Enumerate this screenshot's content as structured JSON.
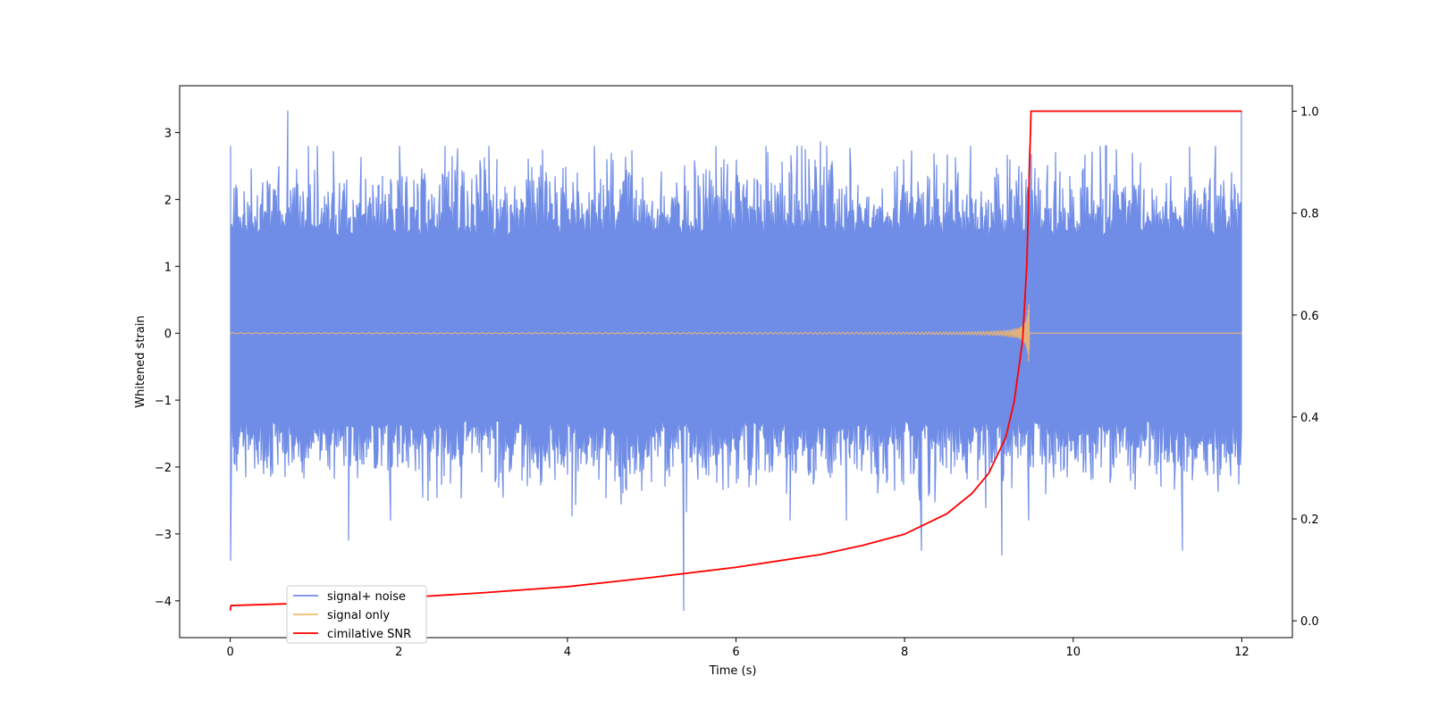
{
  "chart_data": {
    "type": "line",
    "xlabel": "Time (s)",
    "ylabel": "Whitened strain",
    "xlim": [
      -0.6,
      12.6
    ],
    "ylim": [
      -4.55,
      3.7
    ],
    "y2lim": [
      -0.033,
      1.05
    ],
    "x_ticks": [
      "0",
      "2",
      "4",
      "6",
      "8",
      "10",
      "12"
    ],
    "x_tick_values": [
      0,
      2,
      4,
      6,
      8,
      10,
      12
    ],
    "y_ticks": [
      "3",
      "2",
      "1",
      "0",
      "−1",
      "−2",
      "−3",
      "−4"
    ],
    "y_tick_values": [
      3,
      2,
      1,
      0,
      -1,
      -2,
      -3,
      -4
    ],
    "y2_ticks": [
      "1.0",
      "0.8",
      "0.6",
      "0.4",
      "0.2",
      "0.0"
    ],
    "y2_tick_values": [
      1.0,
      0.8,
      0.6,
      0.4,
      0.2,
      0.0
    ],
    "legend_position": "lower-left",
    "series": [
      {
        "name": "signal+ noise",
        "color": "#6f8ce6",
        "axis": "left",
        "description_values": {
          "x_range": [
            0,
            12
          ],
          "envelope_typical": [
            -1.8,
            2.0
          ],
          "peaks": [
            {
              "x": 0.0,
              "y": -3.4
            },
            {
              "x": 0.68,
              "y": 3.33
            },
            {
              "x": 1.4,
              "y": -3.1
            },
            {
              "x": 5.38,
              "y": -4.15
            },
            {
              "x": 7.0,
              "y": 2.87
            },
            {
              "x": 8.2,
              "y": -3.25
            },
            {
              "x": 9.15,
              "y": -3.32
            },
            {
              "x": 11.3,
              "y": -3.25
            },
            {
              "x": 12.0,
              "y": 3.33
            }
          ]
        }
      },
      {
        "name": "signal only",
        "color": "#f5b96a",
        "axis": "left",
        "description_values": {
          "chirp_start": 0,
          "merger_time": 9.48,
          "max_amplitude": 0.62
        }
      },
      {
        "name": "cimilative SNR",
        "color": "#ff0000",
        "axis": "right",
        "x": [
          0.0,
          0.01,
          1.0,
          2.0,
          3.0,
          4.0,
          5.0,
          6.0,
          7.0,
          7.5,
          8.0,
          8.5,
          8.8,
          9.0,
          9.2,
          9.3,
          9.4,
          9.45,
          9.48,
          9.5,
          12.0
        ],
        "y": [
          0.02,
          0.03,
          0.035,
          0.045,
          0.055,
          0.067,
          0.085,
          0.105,
          0.13,
          0.148,
          0.17,
          0.21,
          0.25,
          0.29,
          0.36,
          0.43,
          0.55,
          0.7,
          0.88,
          1.0,
          1.0
        ]
      }
    ]
  }
}
